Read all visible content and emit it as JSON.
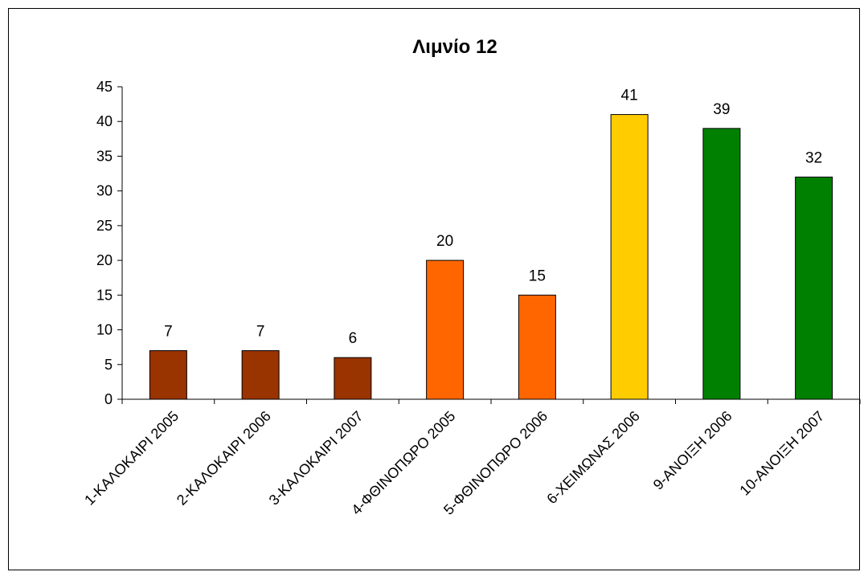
{
  "chart_data": {
    "type": "bar",
    "title": "Λιμνίο 12",
    "xlabel": "",
    "ylabel": "",
    "ylim": [
      0,
      45
    ],
    "yticks": [
      0,
      5,
      10,
      15,
      20,
      25,
      30,
      35,
      40,
      45
    ],
    "grid": false,
    "legend": "none",
    "categories": [
      "1-ΚΑΛΟΚΑΙΡΙ 2005",
      "2-ΚΑΛΟΚΑΙΡΙ 2006",
      "3-ΚΑΛΟΚΑΙΡΙ 2007",
      "4-ΦΘΙΝΟΠΩΡΟ 2005",
      "5-ΦΘΙΝΟΠΩΡΟ 2006",
      "6-ΧΕΙΜΩΝΑΣ 2006",
      "9-ΑΝΟΙΞΗ 2006",
      "10-ΑΝΟΙΞΗ 2007"
    ],
    "values": [
      7,
      7,
      6,
      20,
      15,
      41,
      39,
      32
    ],
    "bar_colors": [
      "#993300",
      "#993300",
      "#993300",
      "#FF6600",
      "#FF6600",
      "#FFCC00",
      "#008000",
      "#008000"
    ]
  }
}
